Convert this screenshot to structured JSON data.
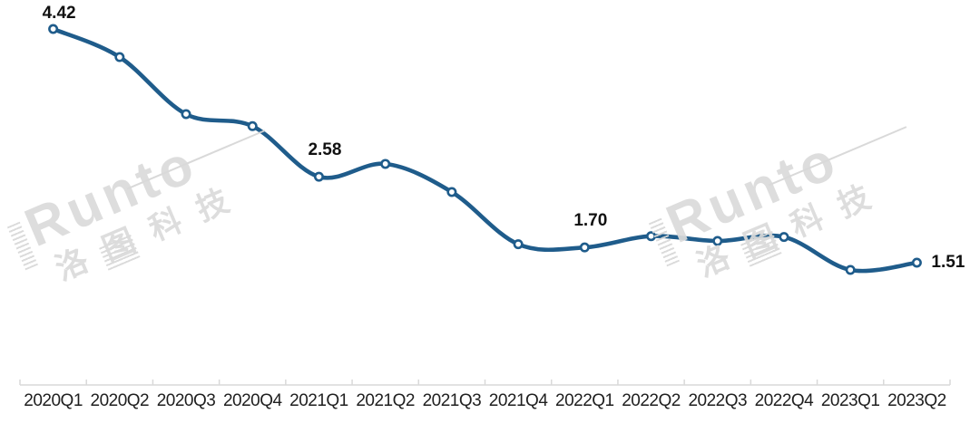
{
  "chart_data": {
    "type": "line",
    "title": "",
    "xlabel": "",
    "ylabel": "",
    "categories": [
      "2020Q1",
      "2020Q2",
      "2020Q3",
      "2020Q4",
      "2021Q1",
      "2021Q2",
      "2021Q3",
      "2021Q4",
      "2022Q1",
      "2022Q2",
      "2022Q3",
      "2022Q4",
      "2023Q1",
      "2023Q2"
    ],
    "values": [
      4.42,
      4.07,
      3.36,
      3.21,
      2.58,
      2.74,
      2.39,
      1.74,
      1.7,
      1.84,
      1.78,
      1.83,
      1.42,
      1.51
    ],
    "labeled_points": [
      {
        "category": "2020Q1",
        "label": "4.42",
        "position": "above"
      },
      {
        "category": "2021Q1",
        "label": "2.58",
        "position": "above"
      },
      {
        "category": "2022Q1",
        "label": "1.70",
        "position": "above"
      },
      {
        "category": "2023Q2",
        "label": "1.51",
        "position": "right"
      }
    ],
    "ylim": [
      1.0,
      4.6
    ],
    "y_axis_visible": false,
    "x_axis_visible": true,
    "grid": false,
    "legend": "none",
    "smooth": true,
    "marker": "open-circle",
    "colors": {
      "line": "#1f5c8b",
      "marker_fill": "#ffffff",
      "axis": "#d9d9d9",
      "x_label": "#1f1f1f",
      "data_label": "#111111",
      "watermark": "#dbdbdb"
    }
  },
  "watermark": {
    "latin": "Runto",
    "cjk": "洛图科技"
  }
}
